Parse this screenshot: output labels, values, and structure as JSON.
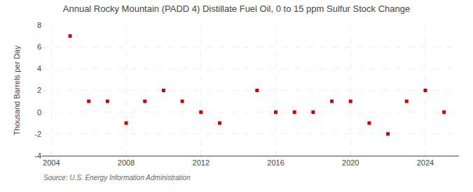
{
  "chart_data": {
    "type": "scatter",
    "title": "Annual Rocky Mountain (PADD 4) Distillate Fuel Oil, 0 to 15 ppm Sulfur Stock Change",
    "y_label": "Thousand Barrels per Day",
    "annotations": [
      "Source: U.S. Energy Information Administration"
    ],
    "x": [
      2005,
      2006,
      2007,
      2008,
      2009,
      2010,
      2011,
      2012,
      2013,
      2015,
      2016,
      2017,
      2018,
      2019,
      2020,
      2021,
      2022,
      2023,
      2024,
      2025
    ],
    "values": [
      7.0,
      1.0,
      1.0,
      -1.0,
      1.0,
      2.0,
      1.0,
      0.0,
      -1.0,
      2.0,
      0.0,
      0.0,
      0.0,
      1.0,
      1.0,
      -1.0,
      -2.0,
      1.0,
      2.0,
      0.0
    ],
    "color": "#cc0000",
    "marker": "square",
    "xlim": [
      2003.5,
      2025.8
    ],
    "ylim": [
      -4,
      8
    ],
    "xticks": [
      2004,
      2008,
      2012,
      2016,
      2020,
      2024
    ],
    "yticks": [
      -4,
      -2,
      0,
      2,
      4,
      6,
      8
    ],
    "grid": true
  }
}
